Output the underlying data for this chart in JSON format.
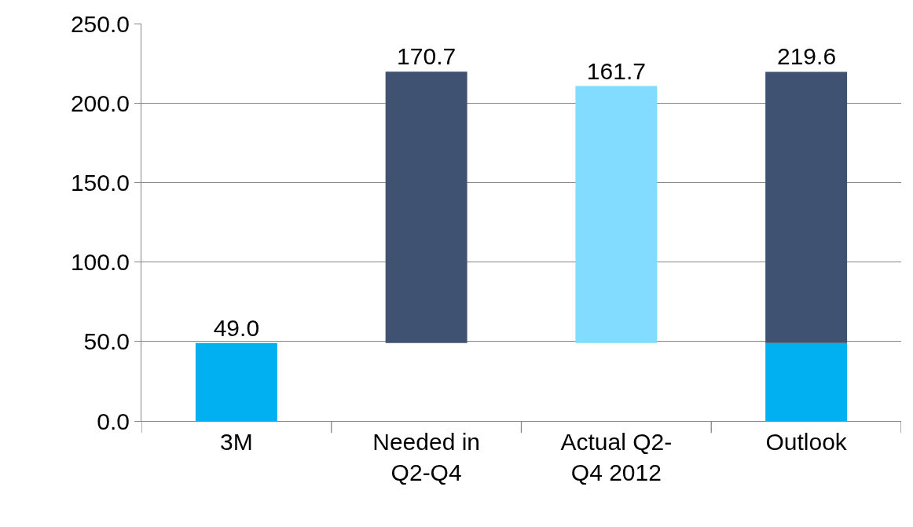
{
  "chart_data": {
    "type": "bar",
    "stacked": true,
    "categories": [
      "3M",
      "Needed in\nQ2-Q4",
      "Actual Q2-\nQ4 2012",
      "Outlook"
    ],
    "series": [
      {
        "color": "#00b0f0",
        "values": [
          49,
          null,
          null,
          49
        ],
        "value_labels": [
          "49.0",
          null,
          null,
          null
        ]
      },
      {
        "color": "#3f5272",
        "values": [
          null,
          170.7,
          null,
          170.6
        ],
        "base": [
          null,
          49,
          null,
          null
        ],
        "value_labels": [
          null,
          "170.7",
          null,
          null
        ]
      },
      {
        "color": "#82dcff",
        "values": [
          null,
          null,
          161.7,
          null
        ],
        "base": [
          null,
          null,
          49,
          null
        ],
        "value_labels": [
          null,
          null,
          "161.7",
          null
        ]
      }
    ],
    "totals": [
      null,
      null,
      null,
      "219.6"
    ],
    "ylim": [
      0,
      250
    ],
    "yticks": [
      {
        "value": 0,
        "label": "0.0"
      },
      {
        "value": 50,
        "label": "50.0"
      },
      {
        "value": 100,
        "label": "100.0"
      },
      {
        "value": 150,
        "label": "150.0"
      },
      {
        "value": 200,
        "label": "200.0"
      },
      {
        "value": 250,
        "label": "250.0"
      }
    ],
    "grid": "y"
  }
}
